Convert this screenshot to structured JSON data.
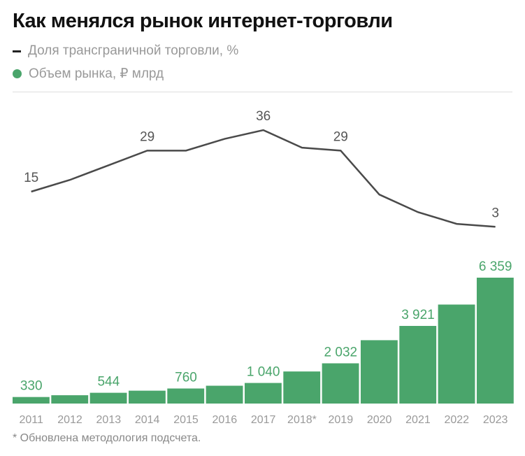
{
  "title": "Как менялся рынок интернет-торговли",
  "legend": [
    {
      "label": "Доля трансграничной торговли, %",
      "marker": "line",
      "color": "#4a4a4a"
    },
    {
      "label": "Объем рынка, ₽ млрд",
      "marker": "dot",
      "color": "#4aa56b"
    }
  ],
  "footnote": "* Обновлена методология подсчета.",
  "chart_data": {
    "type": "bar+line",
    "title": "Как менялся рынок интернет-торговли",
    "categories": [
      "2011",
      "2012",
      "2013",
      "2014",
      "2015",
      "2016",
      "2017",
      "2018*",
      "2019",
      "2020",
      "2021",
      "2022",
      "2023"
    ],
    "series": [
      {
        "name": "Доля трансграничной торговли, %",
        "type": "line",
        "color": "#4a4a4a",
        "values": [
          15,
          19,
          24,
          29,
          29,
          33,
          36,
          30,
          29,
          14,
          8,
          4,
          3
        ],
        "labels": [
          "15",
          "",
          "",
          "29",
          "",
          "",
          "36",
          "",
          "29",
          "",
          "",
          "",
          "3"
        ]
      },
      {
        "name": "Объем рынка, ₽ млрд",
        "type": "bar",
        "color": "#4aa56b",
        "values": [
          330,
          420,
          544,
          650,
          760,
          900,
          1040,
          1620,
          2032,
          3200,
          3921,
          5000,
          6359
        ],
        "labels": [
          "330",
          "",
          "544",
          "",
          "760",
          "",
          "1 040",
          "",
          "2 032",
          "",
          "3 921",
          "",
          "6 359"
        ]
      }
    ],
    "grid": false,
    "legend_position": "top-left"
  }
}
